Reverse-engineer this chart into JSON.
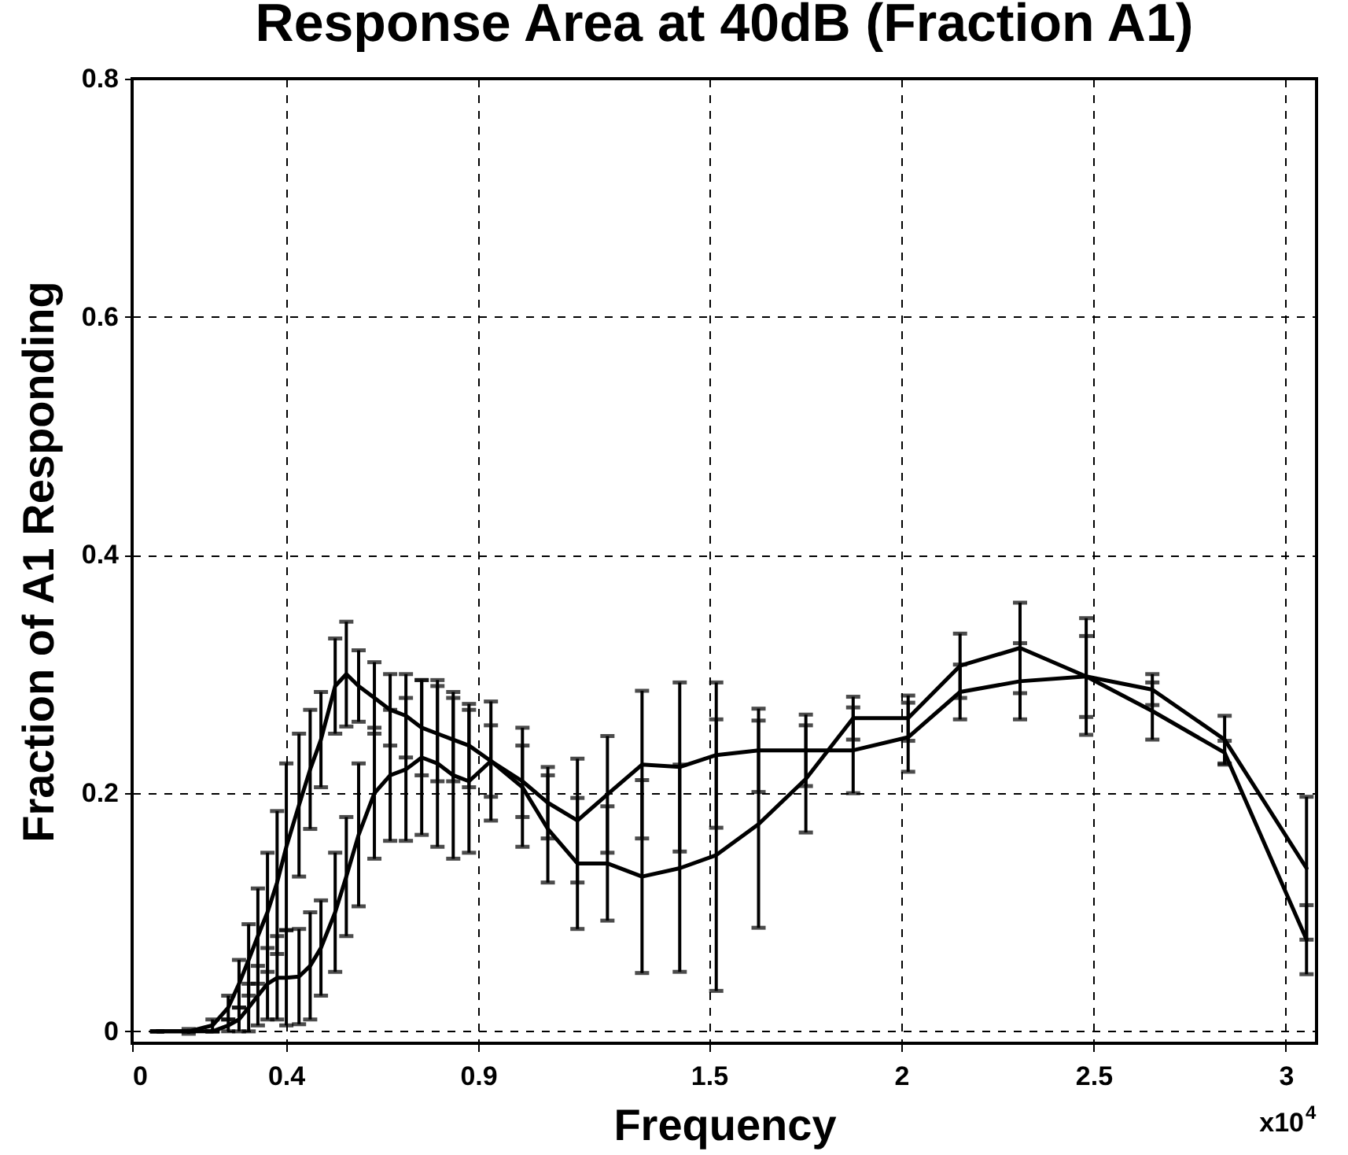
{
  "chart_data": {
    "type": "line",
    "title": "Response Area at 40dB (Fraction A1)",
    "xlabel": "Frequency",
    "ylabel": "Fraction of A1 Responding",
    "annotations": [
      "x10$^{4}$"
    ],
    "x": [
      0.065,
      0.147,
      0.209,
      0.25,
      0.278,
      0.303,
      0.327,
      0.352,
      0.377,
      0.401,
      0.434,
      0.463,
      0.491,
      0.528,
      0.557,
      0.589,
      0.63,
      0.671,
      0.712,
      0.753,
      0.794,
      0.835,
      0.876,
      0.933,
      1.015,
      1.081,
      1.158,
      1.236,
      1.326,
      1.424,
      1.519,
      1.629,
      1.752,
      1.875,
      2.018,
      2.153,
      2.309,
      2.481,
      2.653,
      2.841,
      3.054
    ],
    "series": [
      {
        "color": "#000000",
        "values": [
          0,
          0,
          0.005,
          0.02,
          0.04,
          0.06,
          0.08,
          0.1,
          0.125,
          0.155,
          0.19,
          0.22,
          0.245,
          0.29,
          0.3,
          0.29,
          0.28,
          0.27,
          0.265,
          0.255,
          0.25,
          0.245,
          0.24,
          0.227,
          0.205,
          0.17,
          0.141,
          0.141,
          0.13,
          0.137,
          0.148,
          0.174,
          0.212,
          0.263,
          0.263,
          0.307,
          0.322,
          0.298,
          0.269,
          0.234,
          0.077
        ],
        "errors": [
          0,
          0.002,
          0.005,
          0.01,
          0.02,
          0.03,
          0.04,
          0.05,
          0.06,
          0.07,
          0.06,
          0.05,
          0.04,
          0.04,
          0.044,
          0.03,
          0.03,
          0.03,
          0.035,
          0.04,
          0.04,
          0.035,
          0.035,
          0.03,
          0.05,
          0.045,
          0.055,
          0.048,
          0.081,
          0.087,
          0.114,
          0.087,
          0.045,
          0.018,
          0.019,
          0.027,
          0.038,
          0.049,
          0.024,
          0.01,
          0.029
        ]
      },
      {
        "color": "#000000",
        "values": [
          0,
          0,
          0,
          0.005,
          0.01,
          0.02,
          0.03,
          0.04,
          0.045,
          0.045,
          0.046,
          0.055,
          0.07,
          0.1,
          0.13,
          0.165,
          0.2,
          0.215,
          0.22,
          0.23,
          0.225,
          0.215,
          0.21,
          0.227,
          0.21,
          0.192,
          0.177,
          0.199,
          0.224,
          0.222,
          0.232,
          0.236,
          0.236,
          0.236,
          0.247,
          0.285,
          0.294,
          0.298,
          0.287,
          0.245,
          0.137
        ],
        "errors": [
          0,
          0,
          0,
          0.005,
          0.01,
          0.02,
          0.025,
          0.03,
          0.035,
          0.04,
          0.04,
          0.045,
          0.04,
          0.05,
          0.05,
          0.06,
          0.055,
          0.055,
          0.06,
          0.065,
          0.07,
          0.07,
          0.06,
          0.05,
          0.03,
          0.03,
          0.052,
          0.049,
          0.062,
          0.071,
          0.061,
          0.035,
          0.03,
          0.036,
          0.029,
          0.023,
          0.032,
          0.034,
          0.013,
          0.02,
          0.06
        ]
      }
    ],
    "xlim": [
      0,
      3.08
    ],
    "xticks": [
      0,
      0.4,
      0.9,
      1.5,
      2,
      2.5,
      3
    ],
    "ylim": [
      -0.01,
      0.8
    ],
    "yticks": [
      0,
      0.2,
      0.4,
      0.6,
      0.8
    ],
    "grid": true,
    "legend": false,
    "line_style": "solid"
  }
}
